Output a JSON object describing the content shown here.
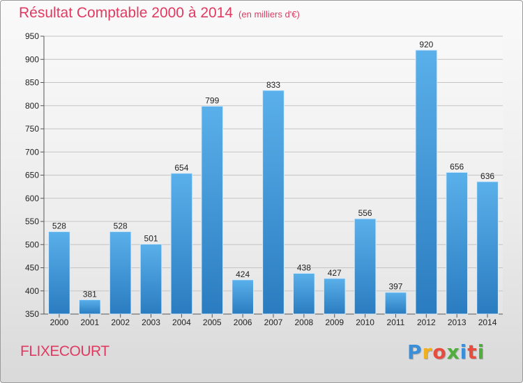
{
  "chart_data": {
    "type": "bar",
    "title": "Résultat Comptable 2000 à 2014",
    "subtitle": "(en milliers d'€)",
    "categories": [
      "2000",
      "2001",
      "2002",
      "2003",
      "2004",
      "2005",
      "2006",
      "2007",
      "2008",
      "2009",
      "2010",
      "2011",
      "2012",
      "2013",
      "2014"
    ],
    "values": [
      528,
      381,
      528,
      501,
      654,
      799,
      424,
      833,
      438,
      427,
      556,
      397,
      920,
      656,
      636
    ],
    "xlabel": "",
    "ylabel": "",
    "ylim": [
      350,
      950
    ],
    "yticks": [
      350,
      400,
      450,
      500,
      550,
      600,
      650,
      700,
      750,
      800,
      850,
      900,
      950
    ],
    "grid": true,
    "bar_color": "#3f97d6"
  },
  "location": "FLIXECOURT",
  "logo": {
    "letters": [
      "P",
      "r",
      "o",
      "x",
      "i",
      "t",
      "i"
    ],
    "colors": [
      "#3a8fd8",
      "#f0b020",
      "#e84c3d",
      "#4fae3c",
      "#3a8fd8",
      "#e84c3d",
      "#4fae3c"
    ]
  },
  "colors": {
    "title": "#e03a60"
  }
}
